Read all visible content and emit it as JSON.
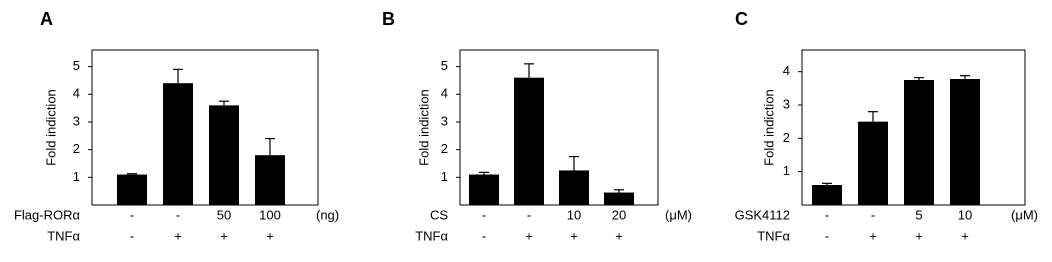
{
  "chart_data": [
    {
      "type": "bar",
      "panel_label": "A",
      "ylabel": "Fold indiction",
      "rows": [
        {
          "name": "Flag-RORα",
          "labels": [
            "-",
            "-",
            "50",
            "100"
          ],
          "unit": "(ng)"
        },
        {
          "name": "TNFα",
          "labels": [
            "-",
            "+",
            "+",
            "+"
          ]
        }
      ],
      "values": [
        1.1,
        4.4,
        3.6,
        1.8
      ],
      "errors": [
        0.03,
        0.5,
        0.15,
        0.6
      ],
      "color": "#000000",
      "ylim": [
        0,
        5.6
      ],
      "yticks": [
        1,
        2,
        3,
        4,
        5
      ]
    },
    {
      "type": "bar",
      "panel_label": "B",
      "ylabel": "Fold indiction",
      "rows": [
        {
          "name": "CS",
          "labels": [
            "-",
            "-",
            "10",
            "20"
          ],
          "unit": "(μM)"
        },
        {
          "name": "TNFα",
          "labels": [
            "-",
            "+",
            "+",
            "+"
          ]
        }
      ],
      "values": [
        1.1,
        4.6,
        1.25,
        0.45
      ],
      "errors": [
        0.08,
        0.5,
        0.5,
        0.1
      ],
      "color": "#000000",
      "ylim": [
        0,
        5.6
      ],
      "yticks": [
        1,
        2,
        3,
        4,
        5
      ]
    },
    {
      "type": "bar",
      "panel_label": "C",
      "ylabel": "Fold indiction",
      "rows": [
        {
          "name": "GSK4112",
          "labels": [
            "-",
            "-",
            "5",
            "10"
          ],
          "unit": "(μM)"
        },
        {
          "name": "TNFα",
          "labels": [
            "-",
            "+",
            "+",
            "+"
          ]
        }
      ],
      "values": [
        0.6,
        2.5,
        3.75,
        3.78
      ],
      "errors": [
        0.05,
        0.3,
        0.07,
        0.1
      ],
      "color": "#000000",
      "ylim": [
        0,
        4.65
      ],
      "yticks": [
        1,
        2,
        3,
        4
      ]
    }
  ]
}
